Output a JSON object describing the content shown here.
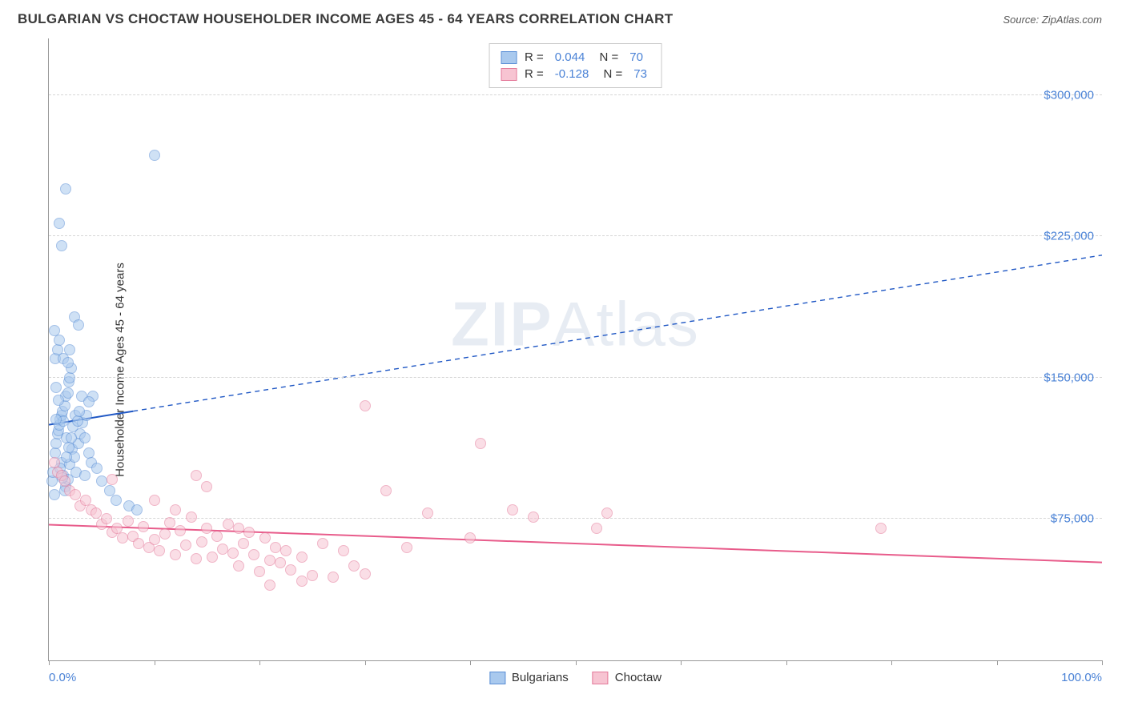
{
  "header": {
    "title": "BULGARIAN VS CHOCTAW HOUSEHOLDER INCOME AGES 45 - 64 YEARS CORRELATION CHART",
    "source_prefix": "Source: ",
    "source_name": "ZipAtlas.com"
  },
  "chart": {
    "type": "scatter",
    "ylabel": "Householder Income Ages 45 - 64 years",
    "watermark_a": "ZIP",
    "watermark_b": "Atlas",
    "xlim": [
      0,
      100
    ],
    "ylim": [
      0,
      330000
    ],
    "xticks": [
      0,
      10,
      20,
      30,
      40,
      50,
      60,
      70,
      80,
      90,
      100
    ],
    "xtick_label_min": "0.0%",
    "xtick_label_max": "100.0%",
    "yticks": [
      {
        "v": 75000,
        "label": "$75,000"
      },
      {
        "v": 150000,
        "label": "$150,000"
      },
      {
        "v": 225000,
        "label": "$225,000"
      },
      {
        "v": 300000,
        "label": "$300,000"
      }
    ],
    "grid_color": "#d6d6d6",
    "axis_color": "#999999",
    "background_color": "#ffffff",
    "point_radius": 7,
    "point_opacity": 0.55,
    "series": [
      {
        "name": "Bulgarians",
        "color_fill": "#a9c9ee",
        "color_stroke": "#5b8fd6",
        "r_value": "0.044",
        "n_value": "70",
        "trend": {
          "x1": 0,
          "y1": 125000,
          "x2": 100,
          "y2": 215000,
          "solid_until_x": 8,
          "color": "#1f57c4",
          "width": 2
        },
        "points": [
          [
            0.3,
            95000
          ],
          [
            0.4,
            100000
          ],
          [
            0.5,
            88000
          ],
          [
            0.6,
            110000
          ],
          [
            0.7,
            115000
          ],
          [
            0.8,
            120000
          ],
          [
            0.9,
            122000
          ],
          [
            1.0,
            125000
          ],
          [
            1.1,
            128000
          ],
          [
            1.2,
            130000
          ],
          [
            1.3,
            132000
          ],
          [
            1.4,
            127000
          ],
          [
            1.5,
            135000
          ],
          [
            1.6,
            140000
          ],
          [
            1.7,
            118000
          ],
          [
            1.8,
            142000
          ],
          [
            1.9,
            148000
          ],
          [
            2.0,
            150000
          ],
          [
            2.1,
            155000
          ],
          [
            0.6,
            160000
          ],
          [
            0.8,
            165000
          ],
          [
            1.0,
            170000
          ],
          [
            1.2,
            105000
          ],
          [
            1.4,
            98000
          ],
          [
            1.6,
            92000
          ],
          [
            1.8,
            96000
          ],
          [
            2.0,
            104000
          ],
          [
            2.2,
            112000
          ],
          [
            2.4,
            108000
          ],
          [
            2.6,
            100000
          ],
          [
            2.8,
            115000
          ],
          [
            3.0,
            120000
          ],
          [
            3.2,
            126000
          ],
          [
            3.4,
            118000
          ],
          [
            3.6,
            130000
          ],
          [
            3.8,
            110000
          ],
          [
            4.0,
            105000
          ],
          [
            4.2,
            140000
          ],
          [
            0.7,
            145000
          ],
          [
            0.9,
            138000
          ],
          [
            1.1,
            102000
          ],
          [
            1.3,
            97000
          ],
          [
            1.5,
            90000
          ],
          [
            1.7,
            108000
          ],
          [
            1.9,
            113000
          ],
          [
            2.1,
            118000
          ],
          [
            2.3,
            124000
          ],
          [
            2.5,
            130000
          ],
          [
            2.7,
            127000
          ],
          [
            2.9,
            132000
          ],
          [
            3.1,
            140000
          ],
          [
            1.0,
            232000
          ],
          [
            1.2,
            220000
          ],
          [
            1.6,
            250000
          ],
          [
            2.4,
            182000
          ],
          [
            2.8,
            178000
          ],
          [
            3.4,
            98000
          ],
          [
            4.6,
            102000
          ],
          [
            5.0,
            95000
          ],
          [
            5.8,
            90000
          ],
          [
            6.4,
            85000
          ],
          [
            7.6,
            82000
          ],
          [
            8.4,
            80000
          ],
          [
            3.8,
            137000
          ],
          [
            10.0,
            268000
          ],
          [
            2.0,
            165000
          ],
          [
            1.4,
            160000
          ],
          [
            1.8,
            158000
          ],
          [
            0.5,
            175000
          ],
          [
            0.7,
            128000
          ]
        ]
      },
      {
        "name": "Choctaw",
        "color_fill": "#f7c4d2",
        "color_stroke": "#e47a9a",
        "r_value": "-0.128",
        "n_value": "73",
        "trend": {
          "x1": 0,
          "y1": 72000,
          "x2": 100,
          "y2": 52000,
          "solid_until_x": 100,
          "color": "#e85c8b",
          "width": 2
        },
        "points": [
          [
            0.5,
            105000
          ],
          [
            0.8,
            100000
          ],
          [
            1.2,
            98000
          ],
          [
            1.5,
            95000
          ],
          [
            2.0,
            90000
          ],
          [
            2.5,
            88000
          ],
          [
            3.0,
            82000
          ],
          [
            3.5,
            85000
          ],
          [
            4.0,
            80000
          ],
          [
            4.5,
            78000
          ],
          [
            5.0,
            72000
          ],
          [
            5.5,
            75000
          ],
          [
            6.0,
            68000
          ],
          [
            6.5,
            70000
          ],
          [
            7.0,
            65000
          ],
          [
            7.5,
            74000
          ],
          [
            8.0,
            66000
          ],
          [
            8.5,
            62000
          ],
          [
            9.0,
            71000
          ],
          [
            9.5,
            60000
          ],
          [
            10.0,
            64000
          ],
          [
            10.5,
            58000
          ],
          [
            11.0,
            67000
          ],
          [
            11.5,
            73000
          ],
          [
            12.0,
            56000
          ],
          [
            12.5,
            69000
          ],
          [
            13.0,
            61000
          ],
          [
            13.5,
            76000
          ],
          [
            14.0,
            54000
          ],
          [
            14.5,
            63000
          ],
          [
            15.0,
            70000
          ],
          [
            15.5,
            55000
          ],
          [
            16.0,
            66000
          ],
          [
            16.5,
            59000
          ],
          [
            17.0,
            72000
          ],
          [
            17.5,
            57000
          ],
          [
            18.0,
            50000
          ],
          [
            18.5,
            62000
          ],
          [
            19.0,
            68000
          ],
          [
            19.5,
            56000
          ],
          [
            20.0,
            47000
          ],
          [
            20.5,
            65000
          ],
          [
            21.0,
            53000
          ],
          [
            21.5,
            60000
          ],
          [
            22.0,
            52000
          ],
          [
            22.5,
            58000
          ],
          [
            23.0,
            48000
          ],
          [
            24.0,
            55000
          ],
          [
            25.0,
            45000
          ],
          [
            26.0,
            62000
          ],
          [
            27.0,
            44000
          ],
          [
            28.0,
            58000
          ],
          [
            29.0,
            50000
          ],
          [
            30.0,
            46000
          ],
          [
            14.0,
            98000
          ],
          [
            15.0,
            92000
          ],
          [
            32.0,
            90000
          ],
          [
            34.0,
            60000
          ],
          [
            36.0,
            78000
          ],
          [
            40.0,
            65000
          ],
          [
            41.0,
            115000
          ],
          [
            44.0,
            80000
          ],
          [
            46.0,
            76000
          ],
          [
            30.0,
            135000
          ],
          [
            52.0,
            70000
          ],
          [
            53.0,
            78000
          ],
          [
            79.0,
            70000
          ],
          [
            24.0,
            42000
          ],
          [
            21.0,
            40000
          ],
          [
            18.0,
            70000
          ],
          [
            10.0,
            85000
          ],
          [
            12.0,
            80000
          ],
          [
            6.0,
            96000
          ]
        ]
      }
    ],
    "legend_bottom": [
      {
        "label": "Bulgarians",
        "fill": "#a9c9ee",
        "stroke": "#5b8fd6"
      },
      {
        "label": "Choctaw",
        "fill": "#f7c4d2",
        "stroke": "#e47a9a"
      }
    ]
  }
}
